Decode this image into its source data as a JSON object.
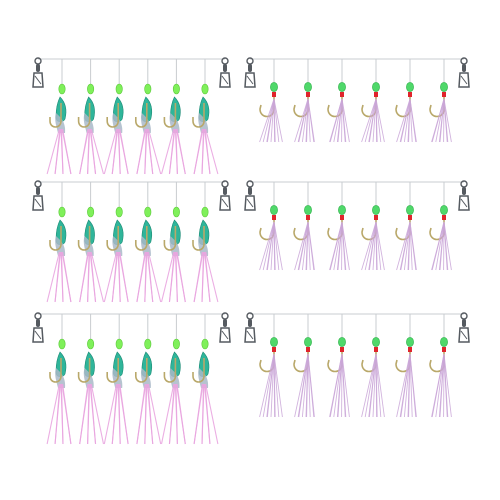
{
  "photo": {
    "background": "#ffffff",
    "panels": [
      {
        "id": "rig-top-left",
        "style": "shrimp",
        "hooks": 6
      },
      {
        "id": "rig-top-right",
        "style": "feather",
        "hooks": 6
      },
      {
        "id": "rig-middle-left",
        "style": "shrimp",
        "hooks": 6
      },
      {
        "id": "rig-middle-right",
        "style": "feather",
        "hooks": 6
      },
      {
        "id": "rig-bottom-left",
        "style": "shrimp",
        "hooks": 6
      },
      {
        "id": "rig-bottom-right",
        "style": "feather",
        "hooks": 6
      }
    ],
    "colors": {
      "line": "#c8ccd0",
      "bead": "#7ff05a",
      "bead_feather": "#4fd86a",
      "shrimp_body": "#2fb59a",
      "shrimp_shell": "#a9b8c8",
      "skirt_pink": "#e9a6e0",
      "skirt_feather": "#caa6d8",
      "thread_red": "#e0242c",
      "hook": "#b9a86a",
      "swivel": "#555a60"
    }
  }
}
